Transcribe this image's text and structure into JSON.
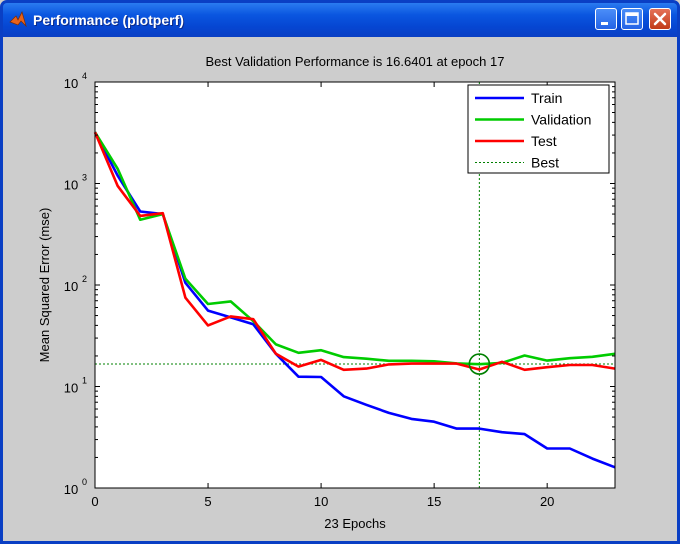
{
  "window": {
    "title": "Performance (plotperf)",
    "icon": "matlab-icon"
  },
  "chart_data": {
    "type": "line",
    "title": "Best Validation Performance is 16.6401 at epoch 17",
    "xlabel": "23 Epochs",
    "ylabel": "Mean Squared Error  (mse)",
    "xlim": [
      0,
      23
    ],
    "ylim": [
      1,
      10000
    ],
    "yscale": "log",
    "x_ticks": [
      0,
      5,
      10,
      15,
      20
    ],
    "y_tick_exponents": [
      0,
      1,
      2,
      3,
      4
    ],
    "y_tick_base": "10",
    "grid": false,
    "legend_position": "top-right",
    "x": [
      0,
      1,
      2,
      3,
      4,
      5,
      6,
      7,
      8,
      9,
      10,
      11,
      12,
      13,
      14,
      15,
      16,
      17,
      18,
      19,
      20,
      21,
      22,
      23
    ],
    "series": [
      {
        "name": "Train",
        "color": "#0000ff",
        "values": [
          3200,
          1200,
          530,
          500,
          105,
          56,
          48,
          41,
          21,
          12.5,
          12.4,
          8.0,
          6.6,
          5.5,
          4.8,
          4.5,
          3.85,
          3.85,
          3.55,
          3.4,
          2.45,
          2.45,
          1.95,
          1.6
        ]
      },
      {
        "name": "Validation",
        "color": "#00cc00",
        "values": [
          3200,
          1400,
          440,
          500,
          115,
          65,
          69,
          44,
          26,
          21.5,
          22.8,
          19.5,
          18.8,
          17.9,
          17.9,
          17.7,
          16.9,
          16.6,
          17.1,
          20.2,
          18,
          19,
          19.6,
          21
        ]
      },
      {
        "name": "Test",
        "color": "#ff0000",
        "values": [
          3200,
          950,
          480,
          510,
          75,
          40,
          49,
          46,
          21,
          15.7,
          18.3,
          14.6,
          15,
          16.5,
          16.8,
          16.8,
          16.8,
          14.7,
          17.5,
          14.6,
          15.5,
          16.3,
          16.3,
          15
        ]
      }
    ],
    "best": {
      "name": "Best",
      "epoch": 17,
      "value": 16.6401,
      "color": "#008000"
    }
  }
}
